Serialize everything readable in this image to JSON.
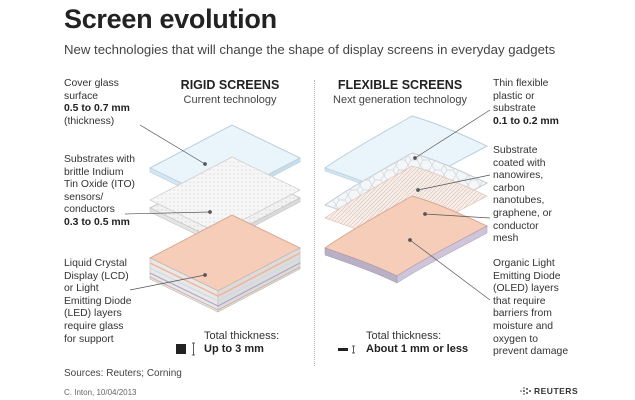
{
  "title": "Screen evolution",
  "subtitle": "New technologies that will change the shape of display screens in everyday gadgets",
  "rigid": {
    "heading": "RIGID SCREENS",
    "subheading": "Current technology",
    "total_label": "Total thickness:",
    "total_value": "Up to 3 mm"
  },
  "flexible": {
    "heading": "FLEXIBLE SCREENS",
    "subheading": "Next generation technology",
    "total_label": "Total thickness:",
    "total_value": "About 1 mm or less"
  },
  "left_labels": [
    {
      "lines": [
        "Cover glass",
        "surface"
      ],
      "value": "0.5 to 0.7 mm",
      "after": [
        "(thickness)"
      ]
    },
    {
      "lines": [
        "Substrates with",
        "brittle Indium",
        "Tin Oxide (ITO)",
        "sensors/",
        "conductors"
      ],
      "value": "0.3 to 0.5 mm",
      "after": []
    },
    {
      "lines": [
        "Liquid Crystal",
        "Display (LCD)",
        "or Light",
        "Emitting Diode",
        "(LED) layers",
        "require glass",
        "for support"
      ],
      "value": "",
      "after": []
    }
  ],
  "right_labels": [
    {
      "lines": [
        "Thin flexible",
        "plastic or",
        "substrate"
      ],
      "value": "0.1 to 0.2 mm",
      "after": []
    },
    {
      "lines": [
        "Substrate",
        "coated with",
        "nanowires,",
        "carbon",
        "nanotubes,",
        "graphene, or",
        "conductor",
        "mesh"
      ],
      "value": "",
      "after": []
    },
    {
      "lines": [
        "Organic Light",
        "Emitting Diode",
        "(OLED) layers",
        "that require",
        "barriers from",
        "moisture and",
        "oxygen to",
        "prevent damage"
      ],
      "value": "",
      "after": []
    }
  ],
  "footer": {
    "sources": "Sources: Reuters; Corning",
    "credit": "C. Inton, 10/04/2013",
    "agency": "REUTERS"
  },
  "colors": {
    "glass": "#eaf4fb",
    "glass_edge": "#b9cfdf",
    "oled": "#f6cdb8",
    "leader": "#555555"
  }
}
